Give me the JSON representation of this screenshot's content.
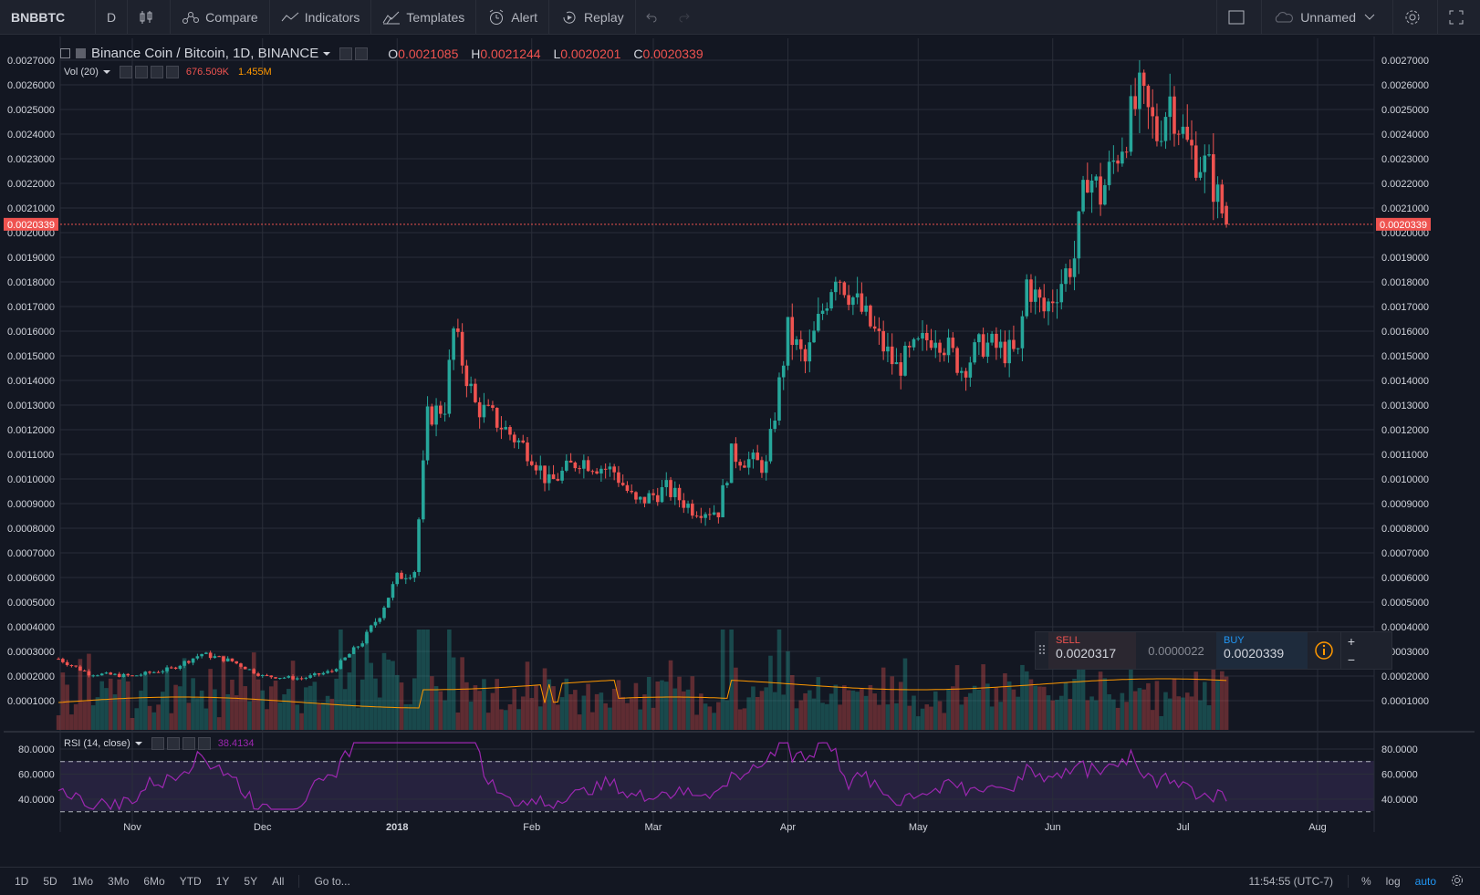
{
  "toolbar": {
    "symbol": "BNBBTC",
    "interval": "D",
    "compare": "Compare",
    "indicators": "Indicators",
    "templates": "Templates",
    "alert": "Alert",
    "replay": "Replay",
    "layout_name": "Unnamed"
  },
  "legend": {
    "title": "Binance Coin / Bitcoin, 1D, BINANCE",
    "open_label": "O",
    "open": "0.0021085",
    "high_label": "H",
    "high": "0.0021244",
    "low_label": "L",
    "low": "0.0020201",
    "close_label": "C",
    "close": "0.0020339"
  },
  "volume_legend": {
    "label": "Vol (20)",
    "value1": "676.509K",
    "value2": "1.455M"
  },
  "rsi_legend": {
    "label": "RSI (14, close)",
    "value": "38.4134"
  },
  "trade_panel": {
    "sell_label": "SELL",
    "sell_price": "0.0020317",
    "spread": "0.0000022",
    "buy_label": "BUY",
    "buy_price": "0.0020339",
    "plus": "+",
    "minus": "−"
  },
  "bottom": {
    "ranges": [
      "1D",
      "5D",
      "1Mo",
      "3Mo",
      "6Mo",
      "YTD",
      "1Y",
      "5Y",
      "All"
    ],
    "goto": "Go to...",
    "time": "11:54:55 (UTC-7)",
    "percent": "%",
    "log": "log",
    "auto": "auto"
  },
  "colors": {
    "up": "#26a69a",
    "down": "#ef5350",
    "rsi": "#9c27b0",
    "vol_ma": "#ff9800",
    "price_line": "#ef5350"
  },
  "chart_data": [
    {
      "type": "candlestick",
      "title": "Binance Coin / Bitcoin, 1D, BINANCE",
      "y_ticks": [
        "0.0001000",
        "0.0002000",
        "0.0003000",
        "0.0004000",
        "0.0005000",
        "0.0006000",
        "0.0007000",
        "0.0008000",
        "0.0009000",
        "0.0010000",
        "0.0011000",
        "0.0012000",
        "0.0013000",
        "0.0014000",
        "0.0015000",
        "0.0016000",
        "0.0017000",
        "0.0018000",
        "0.0019000",
        "0.0020000",
        "0.0021000",
        "0.0022000",
        "0.0023000",
        "0.0024000",
        "0.0025000",
        "0.0026000",
        "0.0027000"
      ],
      "x_ticks": [
        "Nov",
        "Dec",
        "2018",
        "Feb",
        "Mar",
        "Apr",
        "May",
        "Jun",
        "Jul",
        "Aug"
      ],
      "last_price": "0.0020339",
      "close_path": [
        {
          "date": "2017-10-15",
          "close": 0.00027
        },
        {
          "date": "2017-10-22",
          "close": 0.00021
        },
        {
          "date": "2017-11-01",
          "close": 0.0002
        },
        {
          "date": "2017-11-10",
          "close": 0.00023
        },
        {
          "date": "2017-11-17",
          "close": 0.00029
        },
        {
          "date": "2017-11-24",
          "close": 0.00026
        },
        {
          "date": "2017-12-01",
          "close": 0.0002
        },
        {
          "date": "2017-12-10",
          "close": 0.00019
        },
        {
          "date": "2017-12-17",
          "close": 0.00022
        },
        {
          "date": "2017-12-24",
          "close": 0.00034
        },
        {
          "date": "2017-12-28",
          "close": 0.00045
        },
        {
          "date": "2018-01-01",
          "close": 0.0006
        },
        {
          "date": "2018-01-05",
          "close": 0.00063
        },
        {
          "date": "2018-01-08",
          "close": 0.00125
        },
        {
          "date": "2018-01-12",
          "close": 0.0013
        },
        {
          "date": "2018-01-14",
          "close": 0.0016
        },
        {
          "date": "2018-01-19",
          "close": 0.0013
        },
        {
          "date": "2018-01-23",
          "close": 0.00125
        },
        {
          "date": "2018-02-01",
          "close": 0.0011
        },
        {
          "date": "2018-02-05",
          "close": 0.00098
        },
        {
          "date": "2018-02-12",
          "close": 0.00108
        },
        {
          "date": "2018-02-20",
          "close": 0.00103
        },
        {
          "date": "2018-02-25",
          "close": 0.0009
        },
        {
          "date": "2018-03-04",
          "close": 0.00096
        },
        {
          "date": "2018-03-10",
          "close": 0.00088
        },
        {
          "date": "2018-03-16",
          "close": 0.00087
        },
        {
          "date": "2018-03-19",
          "close": 0.0011
        },
        {
          "date": "2018-03-27",
          "close": 0.00105
        },
        {
          "date": "2018-04-01",
          "close": 0.0016
        },
        {
          "date": "2018-04-05",
          "close": 0.00147
        },
        {
          "date": "2018-04-12",
          "close": 0.00185
        },
        {
          "date": "2018-04-19",
          "close": 0.00165
        },
        {
          "date": "2018-04-26",
          "close": 0.00145
        },
        {
          "date": "2018-05-05",
          "close": 0.0016
        },
        {
          "date": "2018-05-11",
          "close": 0.00145
        },
        {
          "date": "2018-05-16",
          "close": 0.00155
        },
        {
          "date": "2018-05-24",
          "close": 0.0015
        },
        {
          "date": "2018-05-26",
          "close": 0.0018
        },
        {
          "date": "2018-05-30",
          "close": 0.00168
        },
        {
          "date": "2018-06-06",
          "close": 0.0019
        },
        {
          "date": "2018-06-09",
          "close": 0.00225
        },
        {
          "date": "2018-06-12",
          "close": 0.00215
        },
        {
          "date": "2018-06-18",
          "close": 0.00242
        },
        {
          "date": "2018-06-21",
          "close": 0.00255
        },
        {
          "date": "2018-06-25",
          "close": 0.0024
        },
        {
          "date": "2018-06-28",
          "close": 0.00255
        },
        {
          "date": "2018-07-02",
          "close": 0.00235
        },
        {
          "date": "2018-07-07",
          "close": 0.00225
        },
        {
          "date": "2018-07-11",
          "close": 0.00203
        }
      ]
    },
    {
      "type": "bar",
      "title": "Vol (20)",
      "values_label": [
        "676.509K",
        "1.455M"
      ]
    },
    {
      "type": "line",
      "title": "RSI (14, close)",
      "y_ticks": [
        "40.0000",
        "60.0000",
        "80.0000"
      ],
      "bands": [
        70,
        30
      ],
      "last_value": "38.4134"
    }
  ]
}
